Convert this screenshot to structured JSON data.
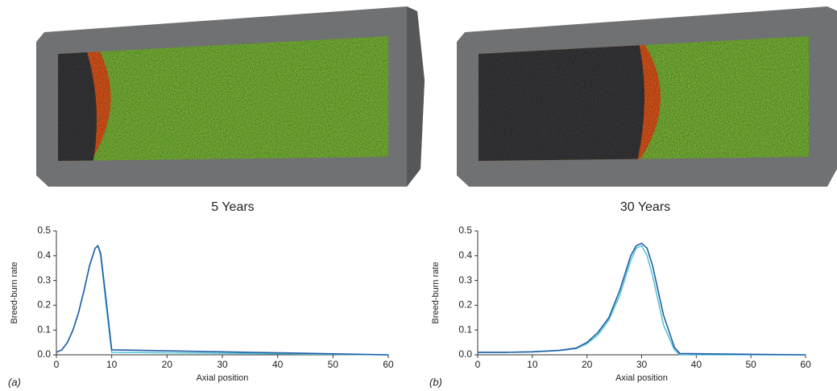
{
  "chart_data": [
    {
      "type": "line",
      "title": "5 Years",
      "panel_label": "(a)",
      "x_label": "Axial position",
      "y_label": "Breed-burn rate",
      "x": [
        0,
        1,
        2,
        3,
        4,
        5,
        6,
        7,
        7.5,
        8,
        9,
        10,
        60
      ],
      "series": [
        {
          "color": "#5cc6d6",
          "values": [
            0.01,
            0.02,
            0.05,
            0.1,
            0.17,
            0.26,
            0.36,
            0.43,
            0.44,
            0.4,
            0.2,
            0.01,
            0
          ]
        },
        {
          "color": "#1f5fa8",
          "values": [
            0.01,
            0.02,
            0.05,
            0.1,
            0.17,
            0.26,
            0.36,
            0.43,
            0.44,
            0.41,
            0.22,
            0.02,
            0
          ]
        }
      ],
      "xlim": [
        0,
        60
      ],
      "ylim": [
        0,
        0.5
      ],
      "xticks": [
        0,
        10,
        20,
        30,
        40,
        50,
        60
      ],
      "yticks": [
        {
          "value": 0,
          "label": "0.0"
        },
        0.1,
        0.2,
        0.3,
        0.4,
        0.5
      ]
    },
    {
      "type": "line",
      "title": "30 Years",
      "panel_label": "(b)",
      "x_label": "Axial position",
      "y_label": "Breed-burn rate",
      "x": [
        0,
        5,
        10,
        15,
        18,
        20,
        22,
        24,
        26,
        28,
        29,
        30,
        31,
        32,
        34,
        36,
        37,
        60
      ],
      "series": [
        {
          "color": "#5cc6d6",
          "values": [
            0.01,
            0.01,
            0.012,
            0.017,
            0.025,
            0.045,
            0.08,
            0.14,
            0.24,
            0.38,
            0.43,
            0.44,
            0.4,
            0.32,
            0.12,
            0.02,
            0,
            0
          ]
        },
        {
          "color": "#1f5fa8",
          "values": [
            0.01,
            0.01,
            0.012,
            0.018,
            0.027,
            0.05,
            0.09,
            0.15,
            0.26,
            0.4,
            0.44,
            0.45,
            0.43,
            0.36,
            0.16,
            0.03,
            0.005,
            0
          ]
        }
      ],
      "xlim": [
        0,
        60
      ],
      "ylim": [
        0,
        0.5
      ],
      "xticks": [
        0,
        10,
        20,
        30,
        40,
        50,
        60
      ],
      "yticks": [
        {
          "value": 0,
          "label": "0.0"
        },
        0.1,
        0.2,
        0.3,
        0.4,
        0.5
      ]
    }
  ]
}
